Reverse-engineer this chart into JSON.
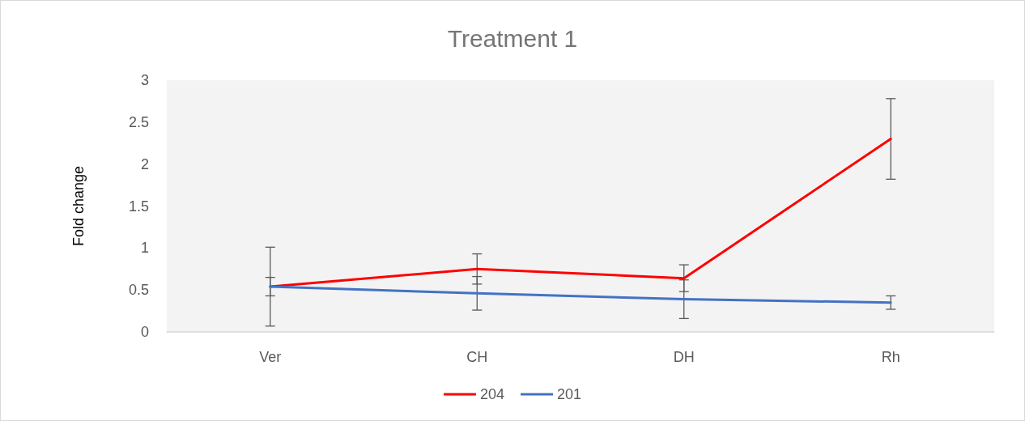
{
  "chart_data": {
    "type": "line",
    "title": "Treatment 1",
    "ylabel": "Fold change",
    "categories": [
      "Ver",
      "CH",
      "DH",
      "Rh"
    ],
    "series": [
      {
        "name": "204",
        "color": "#ff0000",
        "values": [
          0.54,
          0.75,
          0.64,
          2.3
        ],
        "errors": [
          0.47,
          0.18,
          0.16,
          0.48
        ]
      },
      {
        "name": "201",
        "color": "#4472c4",
        "values": [
          0.54,
          0.46,
          0.39,
          0.35
        ],
        "errors": [
          0.11,
          0.2,
          0.23,
          0.08
        ]
      }
    ],
    "ylim": [
      0,
      3
    ],
    "yticks": [
      0,
      0.5,
      1,
      1.5,
      2,
      2.5,
      3
    ],
    "legend": "bottom",
    "marker": "none",
    "line_style": "solid"
  }
}
